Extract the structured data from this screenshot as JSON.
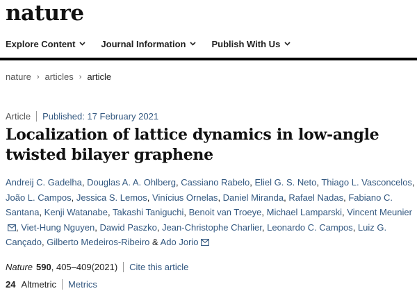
{
  "header": {
    "logo": "nature",
    "nav": [
      {
        "label": "Explore Content",
        "icon": "chevron-down-icon"
      },
      {
        "label": "Journal Information",
        "icon": "chevron-down-icon"
      },
      {
        "label": "Publish With Us",
        "icon": "chevron-down-icon"
      }
    ]
  },
  "breadcrumb": {
    "items": [
      "nature",
      "articles",
      "article"
    ],
    "separator": "›"
  },
  "article": {
    "type": "Article",
    "published": "Published: 17 February 2021",
    "title": "Localization of lattice dynamics in low-angle twisted bilayer graphene",
    "authors": [
      "Andreij C. Gadelha",
      "Douglas A. A. Ohlberg",
      "Cassiano Rabelo",
      "Eliel G. S. Neto",
      "Thiago L. Vasconcelos",
      "João L. Campos",
      "Jessica S. Lemos",
      "Vinícius Ornelas",
      "Daniel Miranda",
      "Rafael Nadas",
      "Fabiano C. Santana",
      "Kenji Watanabe",
      "Takashi Taniguchi",
      "Benoit van Troeye",
      "Michael Lamparski",
      "Vincent Meunier",
      "Viet-Hung Nguyen",
      "Dawid Paszko",
      "Jean-Christophe Charlier",
      "Leonardo C. Campos",
      "Luiz G. Cançado",
      "Gilberto Medeiros-Ribeiro",
      "Ado Jorio"
    ],
    "and_word": "&",
    "citation": {
      "journal": "Nature",
      "volume": "590",
      "pages": ", 405–409(2021)",
      "cite_link": "Cite this article"
    },
    "metrics": {
      "altmetric_score": "24",
      "altmetric_label": "Altmetric",
      "metrics_link": "Metrics"
    }
  },
  "colors": {
    "link": "#335880",
    "rule": "#000000",
    "text": "#222222"
  }
}
